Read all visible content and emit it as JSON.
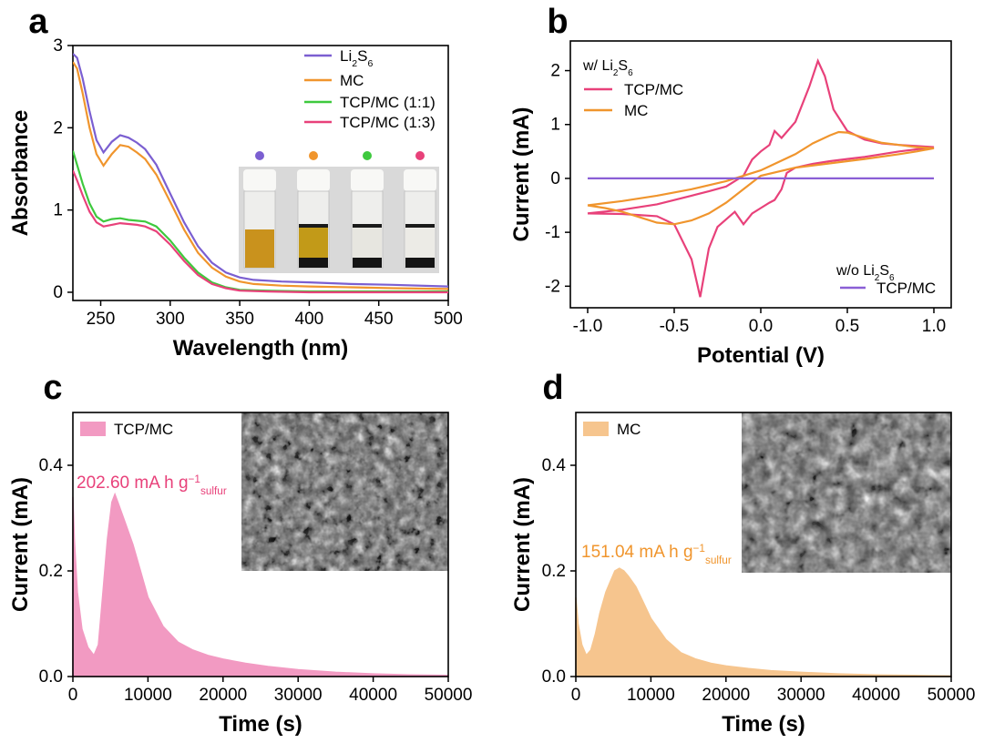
{
  "figure": {
    "label_color": "#000000"
  },
  "chart_data": [
    {
      "panel": "a",
      "type": "line",
      "xlabel": "Wavelength (nm)",
      "ylabel": "Absorbance",
      "xlim": [
        230,
        500
      ],
      "ylim": [
        -0.1,
        3.0
      ],
      "xticks": [
        250,
        300,
        350,
        400,
        450,
        500
      ],
      "yticks": [
        0,
        1,
        2,
        3
      ],
      "legend_position": "top-right",
      "series": [
        {
          "name": "Li2S6",
          "name_main": "Li",
          "name_sub1": "2",
          "name_mid": "S",
          "name_sub2": "6",
          "color": "#7b5fd1",
          "x": [
            230,
            233,
            237,
            242,
            247,
            252,
            258,
            264,
            270,
            276,
            282,
            290,
            300,
            310,
            320,
            330,
            340,
            350,
            360,
            380,
            400,
            430,
            460,
            500
          ],
          "y": [
            2.9,
            2.85,
            2.6,
            2.2,
            1.85,
            1.7,
            1.83,
            1.91,
            1.88,
            1.82,
            1.74,
            1.55,
            1.2,
            0.85,
            0.56,
            0.36,
            0.24,
            0.18,
            0.15,
            0.13,
            0.12,
            0.1,
            0.09,
            0.07
          ]
        },
        {
          "name": "MC",
          "color": "#f0952d",
          "x": [
            230,
            233,
            237,
            242,
            247,
            252,
            258,
            264,
            270,
            276,
            282,
            290,
            300,
            310,
            320,
            330,
            340,
            350,
            360,
            380,
            400,
            430,
            460,
            500
          ],
          "y": [
            2.8,
            2.72,
            2.42,
            2.0,
            1.68,
            1.54,
            1.68,
            1.79,
            1.77,
            1.7,
            1.62,
            1.43,
            1.1,
            0.76,
            0.48,
            0.3,
            0.19,
            0.13,
            0.1,
            0.08,
            0.07,
            0.06,
            0.05,
            0.04
          ]
        },
        {
          "name": "TCP/MC (1:1)",
          "color": "#3ec93e",
          "x": [
            230,
            233,
            237,
            242,
            247,
            252,
            258,
            264,
            270,
            276,
            282,
            290,
            300,
            310,
            320,
            330,
            340,
            350,
            370,
            400,
            450,
            500
          ],
          "y": [
            1.72,
            1.55,
            1.32,
            1.08,
            0.92,
            0.86,
            0.89,
            0.9,
            0.88,
            0.87,
            0.86,
            0.8,
            0.63,
            0.42,
            0.24,
            0.12,
            0.06,
            0.03,
            0.02,
            0.01,
            0.01,
            0.01
          ]
        },
        {
          "name": "TCP/MC (1:3)",
          "color": "#e8417a",
          "x": [
            230,
            233,
            237,
            242,
            247,
            252,
            258,
            264,
            270,
            276,
            282,
            290,
            300,
            310,
            320,
            330,
            340,
            350,
            370,
            400,
            450,
            500
          ],
          "y": [
            1.48,
            1.36,
            1.18,
            0.98,
            0.85,
            0.8,
            0.82,
            0.84,
            0.83,
            0.82,
            0.8,
            0.74,
            0.58,
            0.38,
            0.21,
            0.1,
            0.05,
            0.02,
            0.01,
            0.0,
            0.0,
            0.0
          ]
        }
      ],
      "inset": {
        "kind": "photo",
        "dot_colors": [
          "#7b5fd1",
          "#f0952d",
          "#3ec93e",
          "#e8417a"
        ],
        "liquid_colors": [
          "#c9921d",
          "#c29a18",
          "#e7e6e0",
          "#ecebe6"
        ]
      }
    },
    {
      "panel": "b",
      "type": "line",
      "xlabel": "Potential (V)",
      "ylabel": "Current (mA)",
      "xlim": [
        -1.1,
        1.1
      ],
      "ylim": [
        -2.4,
        2.55
      ],
      "xticks": [
        -1.0,
        -0.5,
        0.0,
        0.5,
        1.0
      ],
      "xtick_labels": [
        "-1.0",
        "-0.5",
        "0.0",
        "0.5",
        "1.0"
      ],
      "yticks": [
        -2,
        -1,
        0,
        1,
        2
      ],
      "legend_with": {
        "title_main": "w/ Li",
        "title_sub1": "2",
        "title_mid": "S",
        "title_sub2": "6",
        "title_rest": "",
        "position": "top-left"
      },
      "legend_without": {
        "title_main": "w/o Li",
        "title_sub1": "2",
        "title_mid": "S",
        "title_sub2": "6",
        "position": "bottom-right"
      },
      "series": [
        {
          "name": "TCP/MC",
          "group": "with",
          "color": "#e8417a",
          "x": [
            -1.0,
            -0.8,
            -0.6,
            -0.4,
            -0.3,
            -0.2,
            -0.1,
            -0.05,
            0.0,
            0.05,
            0.08,
            0.12,
            0.2,
            0.28,
            0.33,
            0.37,
            0.42,
            0.5,
            0.6,
            0.7,
            0.8,
            0.9,
            1.0,
            0.9,
            0.8,
            0.7,
            0.6,
            0.5,
            0.4,
            0.3,
            0.2,
            0.15,
            0.12,
            0.08,
            0.05,
            0.0,
            -0.05,
            -0.1,
            -0.15,
            -0.25,
            -0.3,
            -0.35,
            -0.4,
            -0.5,
            -0.6,
            -0.8,
            -1.0
          ],
          "y": [
            -0.65,
            -0.58,
            -0.48,
            -0.32,
            -0.24,
            -0.15,
            0.05,
            0.35,
            0.5,
            0.62,
            0.88,
            0.75,
            1.05,
            1.7,
            2.18,
            1.9,
            1.28,
            0.88,
            0.72,
            0.65,
            0.62,
            0.6,
            0.58,
            0.54,
            0.5,
            0.45,
            0.4,
            0.36,
            0.32,
            0.27,
            0.2,
            0.1,
            -0.2,
            -0.4,
            -0.45,
            -0.55,
            -0.65,
            -0.85,
            -0.62,
            -0.9,
            -1.3,
            -2.2,
            -1.5,
            -0.85,
            -0.7,
            -0.66,
            -0.65
          ]
        },
        {
          "name": "MC",
          "group": "with",
          "color": "#f0952d",
          "x": [
            -1.0,
            -0.8,
            -0.6,
            -0.4,
            -0.2,
            0.0,
            0.2,
            0.3,
            0.4,
            0.45,
            0.5,
            0.6,
            0.7,
            0.8,
            0.9,
            1.0,
            0.9,
            0.8,
            0.6,
            0.4,
            0.2,
            0.0,
            -0.1,
            -0.2,
            -0.3,
            -0.4,
            -0.5,
            -0.6,
            -0.7,
            -0.8,
            -0.9,
            -1.0
          ],
          "y": [
            -0.5,
            -0.42,
            -0.32,
            -0.2,
            -0.05,
            0.15,
            0.45,
            0.65,
            0.8,
            0.86,
            0.85,
            0.75,
            0.66,
            0.62,
            0.58,
            0.56,
            0.5,
            0.45,
            0.36,
            0.28,
            0.2,
            0.05,
            -0.2,
            -0.45,
            -0.65,
            -0.78,
            -0.85,
            -0.82,
            -0.72,
            -0.62,
            -0.55,
            -0.5
          ]
        },
        {
          "name": "TCP/MC",
          "group": "without",
          "color": "#8a5fd6",
          "x": [
            -1.0,
            1.0
          ],
          "y": [
            0.0,
            0.0
          ]
        }
      ]
    },
    {
      "panel": "c",
      "type": "area",
      "xlabel": "Time (s)",
      "ylabel": "Current (mA)",
      "xlim": [
        0,
        50000
      ],
      "ylim": [
        0,
        0.5
      ],
      "xticks": [
        0,
        10000,
        20000,
        30000,
        40000,
        50000
      ],
      "yticks": [
        0.0,
        0.2,
        0.4
      ],
      "ytick_labels": [
        "0.0",
        "0.2",
        "0.4"
      ],
      "series": [
        {
          "name": "TCP/MC",
          "color": "#f29ac2",
          "x": [
            0,
            200,
            600,
            1200,
            2000,
            2800,
            3400,
            4000,
            4600,
            5200,
            5600,
            6000,
            7000,
            8000,
            9000,
            10000,
            12000,
            14000,
            16000,
            18000,
            20000,
            23000,
            26000,
            30000,
            35000,
            40000,
            45000,
            50000
          ],
          "y": [
            0.34,
            0.26,
            0.16,
            0.09,
            0.055,
            0.04,
            0.06,
            0.16,
            0.26,
            0.33,
            0.345,
            0.33,
            0.29,
            0.25,
            0.2,
            0.15,
            0.095,
            0.065,
            0.05,
            0.04,
            0.033,
            0.025,
            0.019,
            0.013,
            0.008,
            0.005,
            0.003,
            0.002
          ]
        }
      ],
      "annotation": {
        "value": "202.60",
        "unit_main": "mA h g",
        "unit_sup": "−1",
        "unit_sub": "sulfur",
        "color": "#e8417a"
      },
      "inset": {
        "kind": "micrograph"
      }
    },
    {
      "panel": "d",
      "type": "area",
      "xlabel": "Time (s)",
      "ylabel": "Current (mA)",
      "xlim": [
        0,
        50000
      ],
      "ylim": [
        0,
        0.5
      ],
      "xticks": [
        0,
        10000,
        20000,
        30000,
        40000,
        50000
      ],
      "yticks": [
        0.0,
        0.2,
        0.4
      ],
      "ytick_labels": [
        "0.0",
        "0.2",
        "0.4"
      ],
      "series": [
        {
          "name": "MC",
          "color": "#f6c58e",
          "x": [
            0,
            300,
            800,
            1400,
            2000,
            2600,
            3200,
            4000,
            4600,
            5200,
            5800,
            6400,
            7000,
            8000,
            9000,
            10000,
            12000,
            14000,
            16000,
            18000,
            20000,
            23000,
            26000,
            30000,
            35000,
            40000,
            45000,
            50000
          ],
          "y": [
            0.15,
            0.1,
            0.06,
            0.04,
            0.05,
            0.08,
            0.12,
            0.16,
            0.18,
            0.2,
            0.205,
            0.2,
            0.19,
            0.17,
            0.14,
            0.11,
            0.07,
            0.045,
            0.033,
            0.025,
            0.02,
            0.015,
            0.011,
            0.008,
            0.005,
            0.003,
            0.002,
            0.001
          ]
        }
      ],
      "annotation": {
        "value": "151.04",
        "unit_main": "mA h g",
        "unit_sup": "−1",
        "unit_sub": "sulfur",
        "color": "#f0952d"
      },
      "inset": {
        "kind": "micrograph"
      }
    }
  ]
}
